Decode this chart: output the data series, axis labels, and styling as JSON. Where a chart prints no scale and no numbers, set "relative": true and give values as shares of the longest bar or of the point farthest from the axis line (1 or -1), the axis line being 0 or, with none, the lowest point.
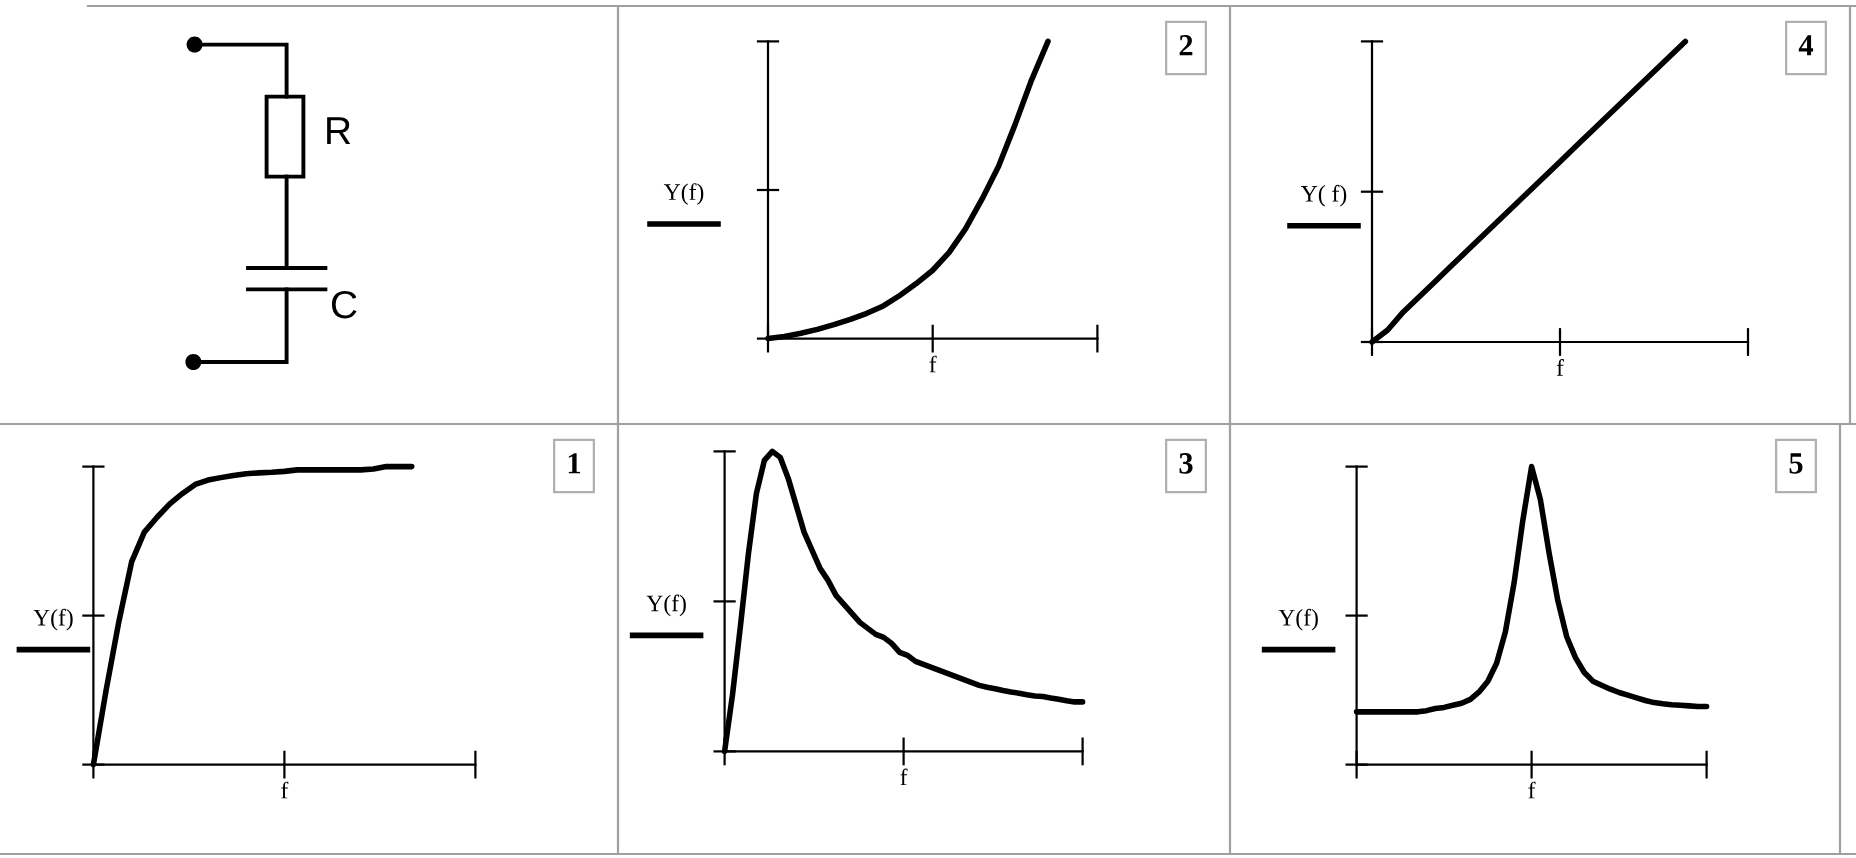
{
  "chart_data": [
    {
      "type": "other",
      "annotations": [
        "R",
        "C"
      ]
    },
    {
      "type": "line",
      "annotations": [
        "2"
      ],
      "xlabel": "f",
      "ylabel": "Y(f)",
      "relative": true,
      "categories": [
        null,
        null,
        null,
        null,
        null,
        null,
        null,
        null,
        null,
        null,
        null,
        null,
        null,
        null,
        null,
        null,
        null,
        null,
        null,
        null,
        null
      ],
      "series": [
        {
          "color": "#000000",
          "values": [
            0,
            0.007,
            0.018,
            0.031,
            0.047,
            0.065,
            0.085,
            0.11,
            0.145,
            0.185,
            0.23,
            0.29,
            0.37,
            0.47,
            0.58,
            0.72,
            0.87,
            1.0,
            null,
            null,
            null
          ]
        }
      ]
    },
    {
      "type": "line",
      "annotations": [
        "4"
      ],
      "xlabel": "f",
      "ylabel": "Y( f)",
      "relative": true,
      "categories": [
        null,
        null,
        null,
        null,
        null,
        null,
        null,
        null,
        null,
        null,
        null,
        null,
        null,
        null,
        null,
        null,
        null,
        null,
        null,
        null,
        null,
        null,
        null,
        null,
        null
      ],
      "series": [
        {
          "color": "#000000",
          "values": [
            0,
            0.04,
            0.1,
            0.15,
            0.2,
            0.25,
            0.3,
            0.35,
            0.4,
            0.45,
            0.5,
            0.55,
            0.6,
            0.65,
            0.7,
            0.75,
            0.8,
            0.85,
            0.9,
            0.95,
            1.0,
            null,
            null,
            null,
            null
          ]
        }
      ]
    },
    {
      "type": "line",
      "annotations": [
        "1"
      ],
      "xlabel": "f",
      "ylabel": "Y(f)",
      "relative": true,
      "categories": [
        null,
        null,
        null,
        null,
        null,
        null,
        null,
        null,
        null,
        null,
        null,
        null,
        null,
        null,
        null,
        null,
        null,
        null,
        null,
        null,
        null,
        null,
        null,
        null,
        null,
        null,
        null,
        null,
        null,
        null,
        null
      ],
      "series": [
        {
          "color": "#000000",
          "values": [
            0,
            0.25,
            0.48,
            0.68,
            0.78,
            0.83,
            0.875,
            0.91,
            0.94,
            0.955,
            0.963,
            0.97,
            0.976,
            0.979,
            0.981,
            0.984,
            0.989,
            0.989,
            0.989,
            0.989,
            0.989,
            0.989,
            0.992,
            1.0,
            1.0,
            1.0,
            null,
            null,
            null,
            null,
            null
          ]
        }
      ]
    },
    {
      "type": "line",
      "annotations": [
        "3"
      ],
      "xlabel": "f",
      "ylabel": "Y(f)",
      "relative": true,
      "categories": [
        null,
        null,
        null,
        null,
        null,
        null,
        null,
        null,
        null,
        null,
        null,
        null,
        null,
        null,
        null,
        null,
        null,
        null,
        null,
        null,
        null,
        null,
        null,
        null,
        null,
        null,
        null,
        null,
        null,
        null,
        null,
        null,
        null,
        null,
        null,
        null,
        null,
        null,
        null,
        null,
        null,
        null,
        null,
        null,
        null,
        null
      ],
      "series": [
        {
          "color": "#000000",
          "values": [
            0,
            0.19,
            0.42,
            0.66,
            0.86,
            0.97,
            1.0,
            0.98,
            0.91,
            0.82,
            0.73,
            0.67,
            0.61,
            0.57,
            0.52,
            0.49,
            0.46,
            0.43,
            0.41,
            0.39,
            0.38,
            0.36,
            0.33,
            0.32,
            0.3,
            0.29,
            0.28,
            0.27,
            0.26,
            0.25,
            0.24,
            0.23,
            0.22,
            0.214,
            0.209,
            0.203,
            0.198,
            0.194,
            0.189,
            0.185,
            0.183,
            0.178,
            0.174,
            0.169,
            0.165,
            0.165
          ]
        }
      ]
    },
    {
      "type": "line",
      "annotations": [
        "5"
      ],
      "xlabel": "f",
      "ylabel": "Y(f)",
      "relative": true,
      "categories": [
        null,
        null,
        null,
        null,
        null,
        null,
        null,
        null,
        null,
        null,
        null,
        null,
        null,
        null,
        null,
        null,
        null,
        null,
        null,
        null,
        null,
        null,
        null,
        null,
        null,
        null,
        null,
        null,
        null,
        null,
        null,
        null,
        null,
        null,
        null,
        null,
        null,
        null,
        null,
        null,
        null
      ],
      "series": [
        {
          "color": "#000000",
          "values": [
            0.177,
            0.177,
            0.177,
            0.177,
            0.177,
            0.177,
            0.177,
            0.177,
            0.181,
            0.188,
            0.192,
            0.199,
            0.206,
            0.219,
            0.244,
            0.28,
            0.34,
            0.445,
            0.61,
            0.82,
            1.0,
            0.89,
            0.71,
            0.55,
            0.43,
            0.36,
            0.31,
            0.28,
            0.266,
            0.253,
            0.242,
            0.233,
            0.224,
            0.215,
            0.208,
            0.204,
            0.201,
            0.199,
            0.197,
            0.195,
            0.195
          ]
        }
      ]
    }
  ]
}
